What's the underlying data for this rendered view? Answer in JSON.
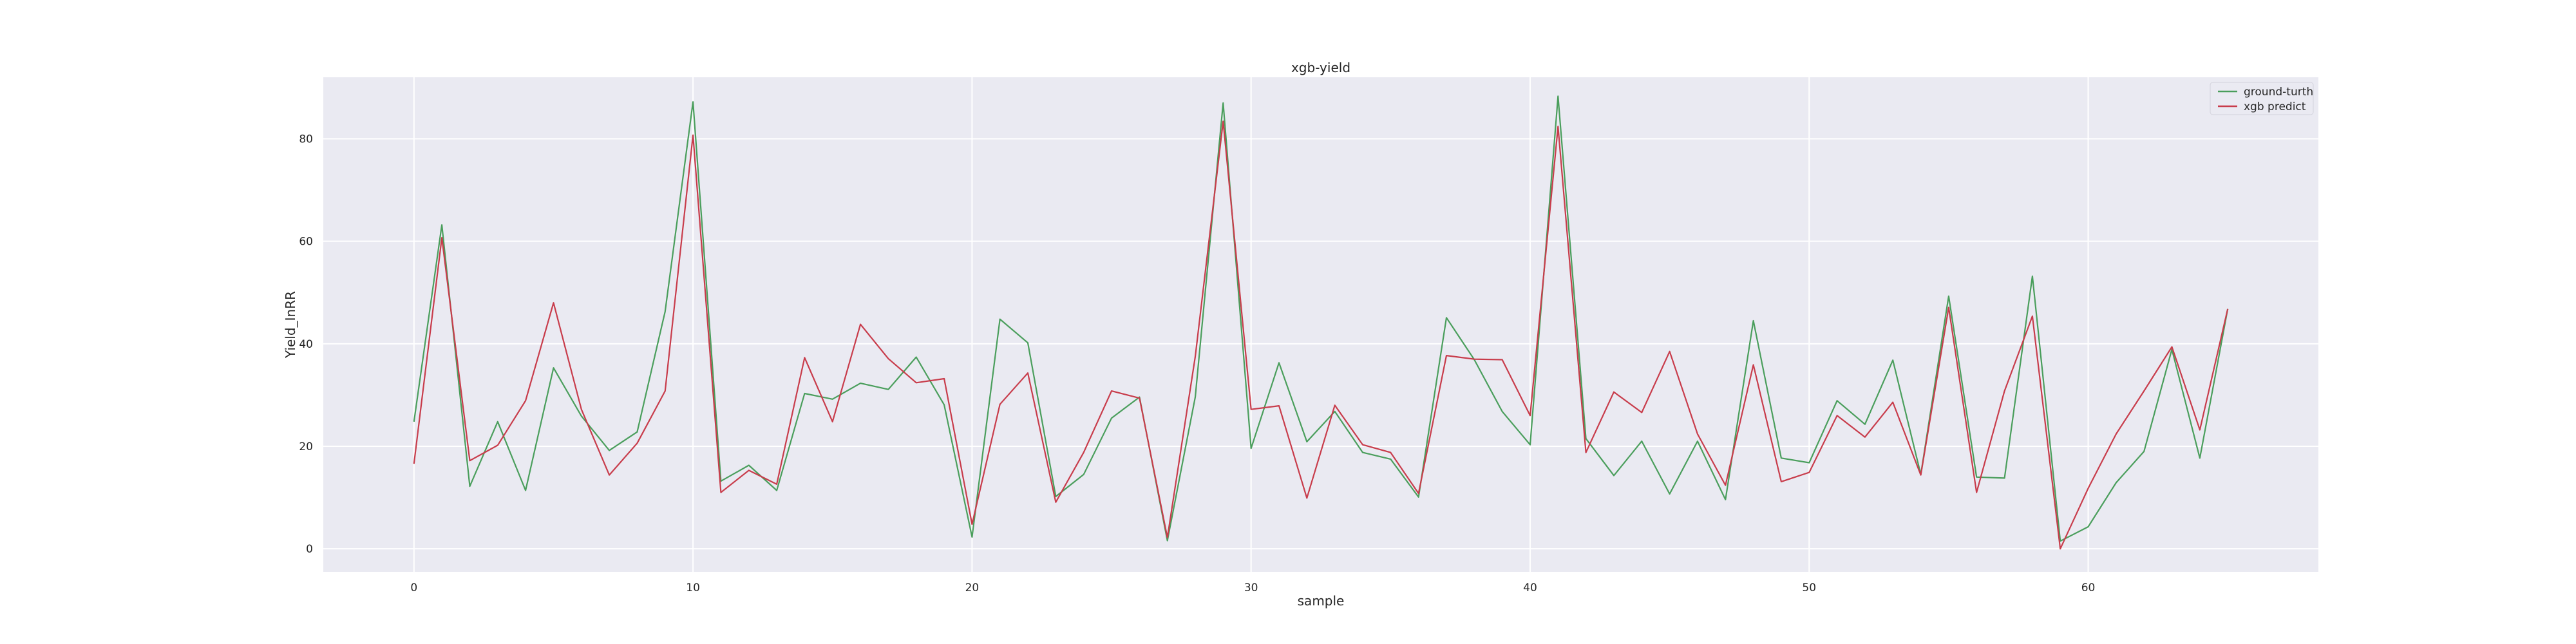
{
  "chart_data": {
    "type": "line",
    "title": "xgb-yield",
    "xlabel": "sample",
    "ylabel": "Yield_InRR",
    "xlim": [
      -3.25,
      68.25
    ],
    "ylim": [
      -4.5,
      92.0
    ],
    "xticks": [
      0,
      10,
      20,
      30,
      40,
      50,
      60
    ],
    "yticks": [
      0,
      20,
      40,
      60,
      80
    ],
    "grid": true,
    "legend_position": "top-right",
    "x": [
      0,
      1,
      2,
      3,
      4,
      5,
      6,
      7,
      8,
      9,
      10,
      11,
      12,
      13,
      14,
      15,
      16,
      17,
      18,
      19,
      20,
      21,
      22,
      23,
      24,
      25,
      26,
      27,
      28,
      29,
      30,
      31,
      32,
      33,
      34,
      35,
      36,
      37,
      38,
      39,
      40,
      41,
      42,
      43,
      44,
      45,
      46,
      47,
      48,
      49,
      50,
      51,
      52,
      53,
      54,
      55,
      56,
      57,
      58,
      59,
      60,
      61,
      62,
      63,
      64,
      65
    ],
    "series": [
      {
        "name": "ground-turth",
        "color": "#4a9e5c",
        "values": [
          24.8,
          63.2,
          12.2,
          24.8,
          11.4,
          35.3,
          25.9,
          19.2,
          22.8,
          46.3,
          87.2,
          13.2,
          16.3,
          11.4,
          30.3,
          29.2,
          32.3,
          31.1,
          37.4,
          28.1,
          2.3,
          44.8,
          40.2,
          10.2,
          14.5,
          25.5,
          29.6,
          1.6,
          29.6,
          87.0,
          19.6,
          36.3,
          20.9,
          26.8,
          18.8,
          17.5,
          10.1,
          45.1,
          36.9,
          26.8,
          20.3,
          88.3,
          21.5,
          14.3,
          21.0,
          10.7,
          21.0,
          9.6,
          44.5,
          17.7,
          16.8,
          28.9,
          24.3,
          36.8,
          14.5,
          49.3,
          14.0,
          13.8,
          53.2,
          1.5,
          4.3,
          12.9,
          19.0,
          38.9,
          17.7,
          46.8
        ]
      },
      {
        "name": "xgb predict",
        "color": "#c83c4b",
        "values": [
          16.6,
          60.7,
          17.2,
          20.2,
          28.9,
          48.0,
          27.2,
          14.4,
          20.6,
          30.8,
          80.7,
          11.0,
          15.3,
          12.6,
          37.3,
          24.8,
          43.8,
          37.1,
          32.4,
          33.2,
          4.8,
          28.2,
          34.3,
          9.1,
          18.8,
          30.8,
          29.4,
          2.2,
          37.5,
          83.4,
          27.2,
          27.9,
          9.9,
          28.0,
          20.3,
          18.8,
          10.8,
          37.7,
          37.0,
          36.9,
          26.0,
          82.4,
          18.8,
          30.6,
          26.6,
          38.5,
          22.4,
          12.4,
          35.9,
          13.1,
          14.9,
          26.0,
          21.8,
          28.6,
          14.4,
          47.1,
          11.0,
          30.8,
          45.4,
          0.0,
          11.8,
          22.4,
          30.8,
          39.4,
          23.2,
          46.8
        ]
      }
    ]
  }
}
